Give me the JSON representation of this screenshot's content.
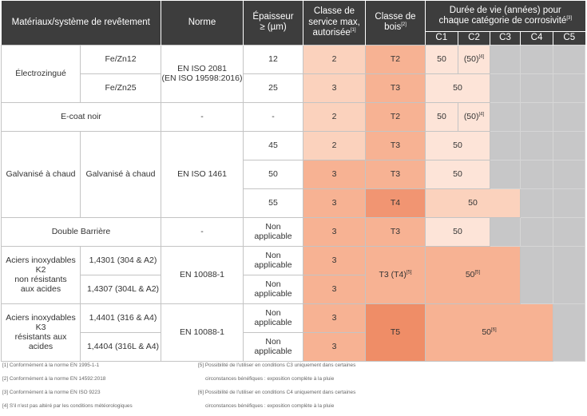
{
  "header": {
    "materials": "Matériaux/système de revêtement",
    "norme": "Norme",
    "epaisseur": "Épaisseur ≥ (µm)",
    "classe_service": "Classe de service max, autorisée",
    "classe_service_ref": "[1]",
    "classe_bois": "Classe de bois",
    "classe_bois_ref": "[2]",
    "duree": "Durée de vie (années) pour chaque catégorie de corrosivité",
    "duree_ref": "[3]",
    "categories": [
      "C1",
      "C2",
      "C3",
      "C4",
      "C5"
    ]
  },
  "rows": {
    "electrozingue": {
      "label": "Électrozingué",
      "norme_line1": "EN ISO 2081",
      "norme_line2": "(EN ISO 19598:2016)",
      "sub": [
        {
          "system": "Fe/Zn12",
          "thickness": "12",
          "service": "2",
          "wood": "T2",
          "c1": "50",
          "c2": "(50)",
          "c2_ref": "[4]"
        },
        {
          "system": "Fe/Zn25",
          "thickness": "25",
          "service": "3",
          "wood": "T3",
          "c12": "50"
        }
      ]
    },
    "ecoat": {
      "label": "E-coat noir",
      "norme": "-",
      "thickness": "-",
      "service": "2",
      "wood": "T2",
      "c1": "50",
      "c2": "(50)",
      "c2_ref": "[4]"
    },
    "galvanise": {
      "label": "Galvanisé à chaud",
      "system": "Galvanisé à chaud",
      "norme": "EN ISO 1461",
      "sub": [
        {
          "thickness": "45",
          "service": "2",
          "wood": "T3",
          "c12": "50"
        },
        {
          "thickness": "50",
          "service": "3",
          "wood": "T3",
          "c12": "50"
        },
        {
          "thickness": "55",
          "service": "3",
          "wood": "T4",
          "c123": "50"
        }
      ]
    },
    "double": {
      "label": "Double Barrière",
      "norme": "-",
      "thickness_line1": "Non",
      "thickness_line2": "applicable",
      "service": "3",
      "wood": "T3",
      "c12": "50"
    },
    "k2": {
      "label_line1": "Aciers inoxydables K2",
      "label_line2": "non résistants",
      "label_line3": "aux acides",
      "norme": "EN 10088-1",
      "wood": "T3 (T4)",
      "wood_ref": "[5]",
      "life": "50",
      "life_ref": "[5]",
      "sub": [
        {
          "system": "1,4301 (304 & A2)",
          "thickness_line1": "Non",
          "thickness_line2": "applicable",
          "service": "3"
        },
        {
          "system": "1,4307 (304L & A2)",
          "thickness_line1": "Non",
          "thickness_line2": "applicable",
          "service": "3"
        }
      ]
    },
    "k3": {
      "label_line1": "Aciers inoxydables K3",
      "label_line2": "résistants aux acides",
      "norme": "EN 10088-1",
      "wood": "T5",
      "life": "50",
      "life_ref": "[6]",
      "sub": [
        {
          "system": "1,4401 (316 & A4)",
          "thickness_line1": "Non",
          "thickness_line2": "applicable",
          "service": "3"
        },
        {
          "system": "1,4404 (316L & A4)",
          "thickness_line1": "Non",
          "thickness_line2": "applicable",
          "service": "3"
        }
      ]
    }
  },
  "footnotes": {
    "n1": "[1] Conformément à la norme EN 1995-1-1",
    "n2": "[2] Conformément à la norme EN 14592:2018",
    "n3": "[3] Conformément à la norme EN ISO 9223",
    "n4": "[4] S'il n'est pas altéré par les conditions météorologiques",
    "n5a": "[5] Possibilité de l'utiliser en conditions C3 uniquement dans certaines",
    "n5b": "circonstances bénéfiques : exposition complète à la pluie",
    "n6a": "[6] Possibilité de l'utiliser en conditions C4 uniquement dans certaines",
    "n6b": "circonstances bénéfiques : exposition complète à la pluie"
  },
  "colors": {
    "header_bg": "#3d3d3d",
    "service_peach": "#fbd2bd",
    "wood_salmon": "#f7b293",
    "wood_t4": "#f19572",
    "wood_t5": "#ef8d67",
    "life_light": "#fde4d8",
    "not_applicable_grey": "#c7c7c8"
  }
}
